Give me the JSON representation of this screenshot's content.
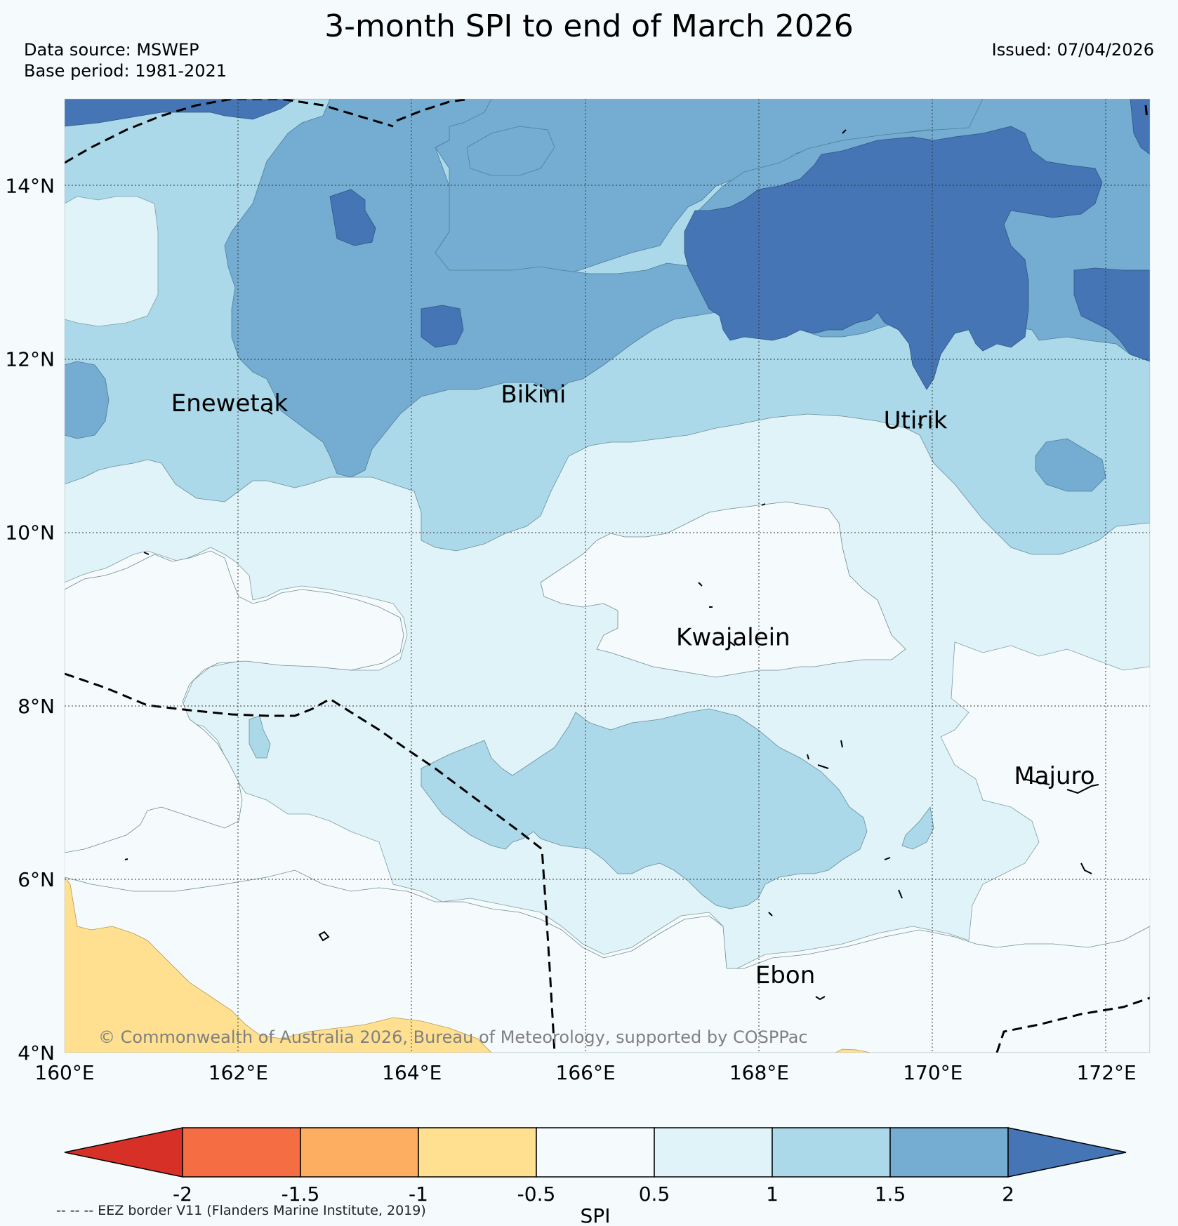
{
  "title": "3-month SPI to end of March 2026",
  "data_source": "Data source: MSWEP",
  "base_period": "Base period: 1981-2021",
  "issued": "Issued: 07/04/2026",
  "map": {
    "lon_range": [
      160,
      172.5
    ],
    "lat_range": [
      4,
      15
    ],
    "grid": true,
    "lon_ticks": [
      {
        "value": 160,
        "label": "160°E"
      },
      {
        "value": 162,
        "label": "162°E"
      },
      {
        "value": 164,
        "label": "164°E"
      },
      {
        "value": 166,
        "label": "166°E"
      },
      {
        "value": 168,
        "label": "168°E"
      },
      {
        "value": 170,
        "label": "170°E"
      },
      {
        "value": 172,
        "label": "172°E"
      }
    ],
    "lat_ticks": [
      {
        "value": 4,
        "label": "4°N"
      },
      {
        "value": 6,
        "label": "6°N"
      },
      {
        "value": 8,
        "label": "8°N"
      },
      {
        "value": 10,
        "label": "10°N"
      },
      {
        "value": 12,
        "label": "12°N"
      },
      {
        "value": 14,
        "label": "14°N"
      }
    ],
    "places": [
      {
        "name": "Enewetak",
        "lon": 161.9,
        "lat": 11.4
      },
      {
        "name": "Bikini",
        "lon": 165.4,
        "lat": 11.5
      },
      {
        "name": "Utirik",
        "lon": 169.8,
        "lat": 11.2
      },
      {
        "name": "Kwajalein",
        "lon": 167.7,
        "lat": 8.7
      },
      {
        "name": "Majuro",
        "lon": 171.4,
        "lat": 7.1
      },
      {
        "name": "Ebon",
        "lon": 168.3,
        "lat": 4.8
      }
    ],
    "colors": {
      "c_lt_-1": "#fdae61",
      "c_-1_-0.5": "#fee090",
      "c_-0.5_0.5": "#f5fbfc",
      "c_0.5_1": "#e0f3f8",
      "c_1_1.5": "#abd9e9",
      "c_1.5_2": "#74add1",
      "c_gt_2": "#4575b4"
    },
    "credit": "© Commonwealth of Australia 2026, Bureau of Meteorology, supported by COSPPac"
  },
  "colorbar": {
    "label": "SPI",
    "ticks": [
      "-2",
      "-1.5",
      "-1",
      "-0.5",
      "0.5",
      "1",
      "1.5",
      "2"
    ],
    "colors": [
      "#d73027",
      "#f46d43",
      "#fdae61",
      "#fee090",
      "#f5fbfc",
      "#e0f3f8",
      "#abd9e9",
      "#74add1",
      "#4575b4"
    ]
  },
  "footnote": "-- -- -- EEZ border V11 (Flanders Marine Institute, 2019)"
}
